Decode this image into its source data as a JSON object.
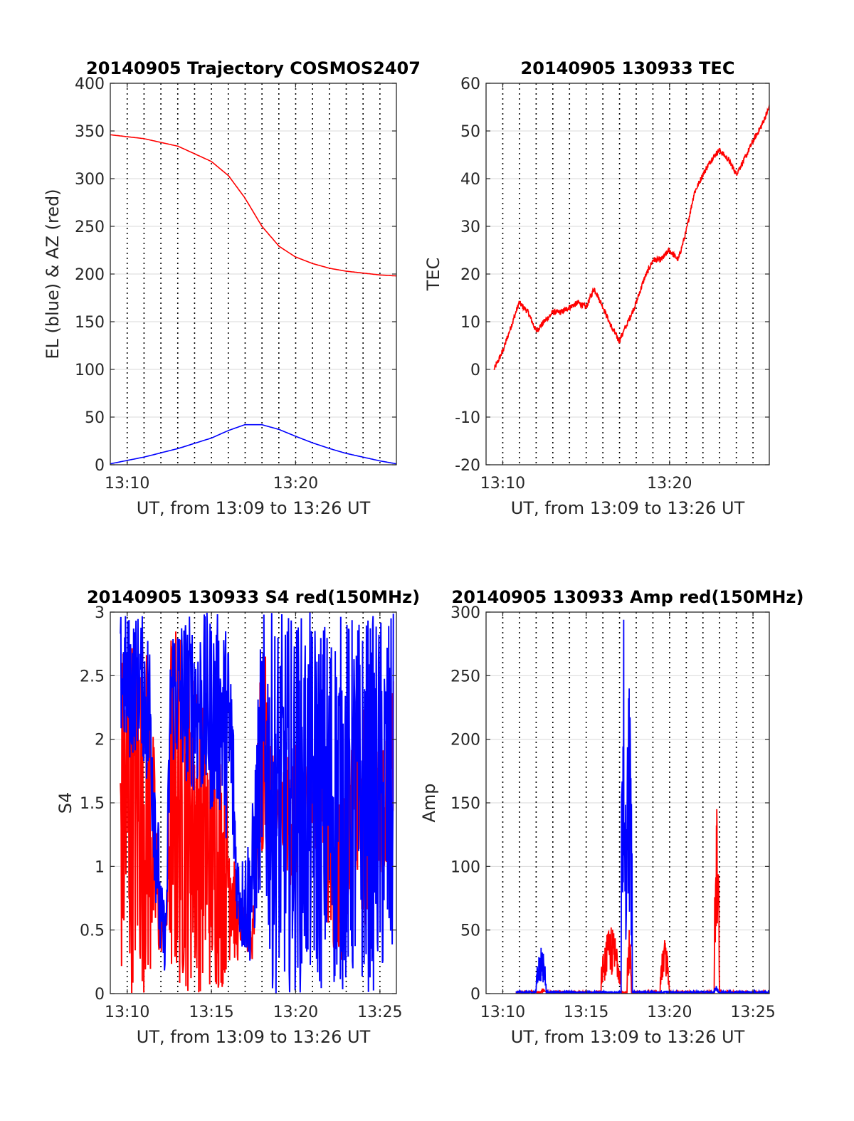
{
  "chart_data": [
    {
      "id": "traj",
      "type": "line",
      "title": "20140905 Trajectory COSMOS2407",
      "xlabel": "UT, from 13:09 to 13:26 UT",
      "ylabel": "EL (blue) & AZ (red)",
      "xlim": [
        13.15,
        13.433
      ],
      "ylim": [
        0,
        400
      ],
      "yticks": [
        0,
        50,
        100,
        150,
        200,
        250,
        300,
        350,
        400
      ],
      "xticks": [
        {
          "t": 13.1667,
          "label": "13:10"
        },
        {
          "t": 13.3333,
          "label": "13:20"
        }
      ],
      "minute_grid": {
        "start": 13.1667,
        "end": 13.4167,
        "step_min": 1
      },
      "series": [
        {
          "color": "#ff0000",
          "x": [
            13.15,
            13.183,
            13.217,
            13.25,
            13.267,
            13.283,
            13.3,
            13.317,
            13.333,
            13.35,
            13.367,
            13.383,
            13.4,
            13.417,
            13.433
          ],
          "y": [
            346,
            342,
            334,
            318,
            303,
            280,
            250,
            229,
            218,
            211,
            206,
            203,
            201,
            199,
            198
          ]
        },
        {
          "color": "#0000ff",
          "x": [
            13.15,
            13.183,
            13.217,
            13.25,
            13.267,
            13.283,
            13.3,
            13.317,
            13.333,
            13.35,
            13.367,
            13.383,
            13.4,
            13.417,
            13.433
          ],
          "y": [
            1,
            8,
            17,
            28,
            36,
            42,
            42,
            37,
            30,
            23,
            17,
            12,
            8,
            4,
            1
          ]
        }
      ]
    },
    {
      "id": "tec",
      "type": "line",
      "title": "20140905 130933 TEC",
      "xlabel": "UT, from 13:09 to 13:26 UT",
      "ylabel": "TEC",
      "xlim": [
        13.15,
        13.433
      ],
      "ylim": [
        -20,
        60
      ],
      "yticks": [
        -20,
        -10,
        0,
        10,
        20,
        30,
        40,
        50,
        60
      ],
      "xticks": [
        {
          "t": 13.1667,
          "label": "13:10"
        },
        {
          "t": 13.3333,
          "label": "13:20"
        }
      ],
      "minute_grid": {
        "start": 13.1667,
        "end": 13.4167,
        "step_min": 1
      },
      "series": [
        {
          "color": "#ff0000",
          "x": [
            13.158,
            13.167,
            13.175,
            13.183,
            13.192,
            13.2,
            13.208,
            13.217,
            13.225,
            13.233,
            13.242,
            13.25,
            13.258,
            13.267,
            13.275,
            13.283,
            13.292,
            13.3,
            13.308,
            13.317,
            13.325,
            13.333,
            13.342,
            13.35,
            13.358,
            13.367,
            13.375,
            13.383,
            13.392,
            13.4,
            13.408,
            13.417,
            13.425,
            13.433
          ],
          "y": [
            0,
            4,
            9,
            14,
            12,
            8,
            10,
            12,
            12,
            13,
            14,
            13,
            17,
            13,
            9,
            6,
            10,
            14,
            19,
            23,
            23,
            25,
            23,
            29,
            37,
            41,
            44,
            46,
            44,
            41,
            44,
            48,
            51,
            55
          ]
        }
      ]
    },
    {
      "id": "s4",
      "type": "line",
      "title": "20140905 130933 S4 red(150MHz)",
      "xlabel": "UT, from 13:09 to 13:26 UT",
      "ylabel": "S4",
      "xlim": [
        13.15,
        13.433
      ],
      "ylim": [
        0,
        3
      ],
      "yticks": [
        "0",
        "0.5",
        "1",
        "1.5",
        "2",
        "2.5",
        "3"
      ],
      "xticks": [
        {
          "t": 13.1667,
          "label": "13:10"
        },
        {
          "t": 13.25,
          "label": "13:15"
        },
        {
          "t": 13.3333,
          "label": "13:20"
        },
        {
          "t": 13.4167,
          "label": "13:25"
        }
      ],
      "minute_grid": {
        "start": 13.1667,
        "end": 13.4167,
        "step_min": 1
      },
      "series": [
        {
          "color": "#ff0000",
          "kind": "noisy",
          "x": [
            13.16,
            13.17,
            13.18,
            13.19,
            13.2,
            13.205,
            13.21,
            13.22,
            13.23,
            13.24,
            13.25,
            13.26,
            13.27,
            13.275,
            13.28,
            13.29,
            13.3,
            13.31,
            13.32,
            13.33,
            13.34,
            13.35,
            13.36,
            13.37,
            13.38,
            13.39,
            13.4,
            13.41,
            13.42,
            13.43
          ],
          "lo": [
            0.0,
            0.0,
            0.0,
            0.0,
            0.3,
            0.4,
            0.0,
            0.0,
            0.0,
            0.0,
            0.0,
            0.0,
            0.3,
            0.2,
            0.4,
            0.2,
            1.0,
            1.0,
            1.0,
            0.8,
            1.0,
            1.2,
            1.0,
            0.2,
            0.2,
            1.0,
            0.4,
            0.8,
            1.0,
            1.0
          ],
          "hi": [
            2.8,
            2.9,
            3.0,
            2.6,
            0.7,
            0.6,
            3.0,
            2.9,
            2.7,
            2.5,
            2.1,
            2.0,
            1.6,
            0.8,
            0.7,
            0.6,
            3.0,
            2.0,
            1.8,
            2.0,
            1.9,
            1.8,
            2.0,
            1.8,
            1.6,
            2.1,
            2.3,
            2.2,
            2.0,
            2.5
          ]
        },
        {
          "color": "#0000ff",
          "kind": "noisy",
          "x": [
            13.16,
            13.17,
            13.18,
            13.19,
            13.2,
            13.205,
            13.21,
            13.22,
            13.23,
            13.24,
            13.25,
            13.26,
            13.27,
            13.275,
            13.28,
            13.29,
            13.3,
            13.31,
            13.32,
            13.33,
            13.34,
            13.35,
            13.36,
            13.37,
            13.38,
            13.39,
            13.4,
            13.41,
            13.42,
            13.43
          ],
          "lo": [
            2.0,
            1.8,
            2.0,
            1.3,
            0.1,
            0.2,
            1.8,
            1.7,
            1.6,
            1.5,
            1.4,
            1.4,
            1.0,
            0.6,
            0.3,
            0.2,
            0.9,
            0.0,
            0.0,
            0.0,
            0.0,
            0.0,
            0.0,
            0.0,
            0.0,
            0.0,
            0.0,
            0.0,
            0.0,
            0.0
          ],
          "hi": [
            3.0,
            3.0,
            3.0,
            2.9,
            0.9,
            0.7,
            3.0,
            3.0,
            3.0,
            3.0,
            3.0,
            3.0,
            2.8,
            1.2,
            1.1,
            1.4,
            3.0,
            3.0,
            3.0,
            3.0,
            3.0,
            3.0,
            3.0,
            3.0,
            3.0,
            3.0,
            3.0,
            3.0,
            3.0,
            3.0
          ]
        }
      ]
    },
    {
      "id": "amp",
      "type": "line",
      "title": "20140905 130933 Amp red(150MHz)",
      "xlabel": "UT, from 13:09 to 13:26 UT",
      "ylabel": "Amp",
      "xlim": [
        13.15,
        13.433
      ],
      "ylim": [
        0,
        300
      ],
      "yticks": [
        0,
        50,
        100,
        150,
        200,
        250,
        300
      ],
      "xticks": [
        {
          "t": 13.1667,
          "label": "13:10"
        },
        {
          "t": 13.25,
          "label": "13:15"
        },
        {
          "t": 13.3333,
          "label": "13:20"
        },
        {
          "t": 13.4167,
          "label": "13:25"
        }
      ],
      "minute_grid": {
        "start": 13.1667,
        "end": 13.4167,
        "step_min": 1
      },
      "series": [
        {
          "color": "#ff0000",
          "kind": "spikes",
          "baseline": 1,
          "bursts": [
            {
              "t0": 13.205,
              "t1": 13.209,
              "peak": 4
            },
            {
              "t0": 13.265,
              "t1": 13.285,
              "peak": 52
            },
            {
              "t0": 13.291,
              "t1": 13.295,
              "peak": 50
            },
            {
              "t0": 13.324,
              "t1": 13.333,
              "peak": 42
            },
            {
              "t0": 13.378,
              "t1": 13.383,
              "peak": 145
            }
          ]
        },
        {
          "color": "#0000ff",
          "kind": "spikes",
          "baseline": 1,
          "bursts": [
            {
              "t0": 13.2,
              "t1": 13.21,
              "peak": 36
            },
            {
              "t0": 13.285,
              "t1": 13.29,
              "peak": 294
            },
            {
              "t0": 13.29,
              "t1": 13.296,
              "peak": 240
            },
            {
              "t0": 13.378,
              "t1": 13.382,
              "peak": 6
            }
          ]
        }
      ]
    }
  ]
}
